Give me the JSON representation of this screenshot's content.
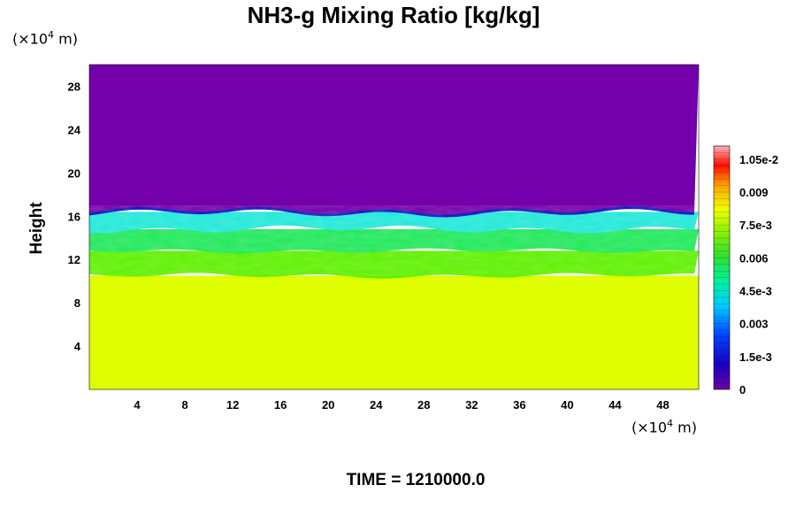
{
  "chart_data": {
    "type": "heatmap",
    "title": "NH3-g Mixing Ratio [kg/kg]",
    "xlabel": "",
    "ylabel": "Height",
    "x_unit": "(×10⁴ m)",
    "y_unit": "(×10⁴ m)",
    "xlim": [
      0,
      51
    ],
    "ylim": [
      0,
      30
    ],
    "x_ticks": [
      4,
      8,
      12,
      16,
      20,
      24,
      28,
      32,
      36,
      40,
      44,
      48
    ],
    "y_ticks": [
      4,
      8,
      12,
      16,
      20,
      24,
      28
    ],
    "colorbar": {
      "min": 0,
      "max": 0.0111,
      "tick_values": [
        0,
        0.0015,
        0.003,
        0.0045,
        0.006,
        0.0075,
        0.009,
        0.0105
      ],
      "tick_labels": [
        "0",
        "1.5e-3",
        "0.003",
        "4.5e-3",
        "0.006",
        "7.5e-3",
        "0.009",
        "1.05e-2"
      ]
    },
    "layers": [
      {
        "from_height": 0,
        "to_height": 10.5,
        "value": 0.0077,
        "color": "#e0ff00"
      },
      {
        "from_height": 10.5,
        "to_height": 12.8,
        "value": 0.0065,
        "color": "#5ef000"
      },
      {
        "from_height": 12.8,
        "to_height": 14.8,
        "value": 0.0055,
        "color": "#20e85a"
      },
      {
        "from_height": 14.8,
        "to_height": 16.4,
        "value": 0.004,
        "color": "#20e8d8"
      },
      {
        "from_height": 16.4,
        "to_height": 30,
        "value": 0.0,
        "color": "#7300aa"
      }
    ]
  },
  "footer": {
    "time_label": "TIME = 1210000.0"
  }
}
